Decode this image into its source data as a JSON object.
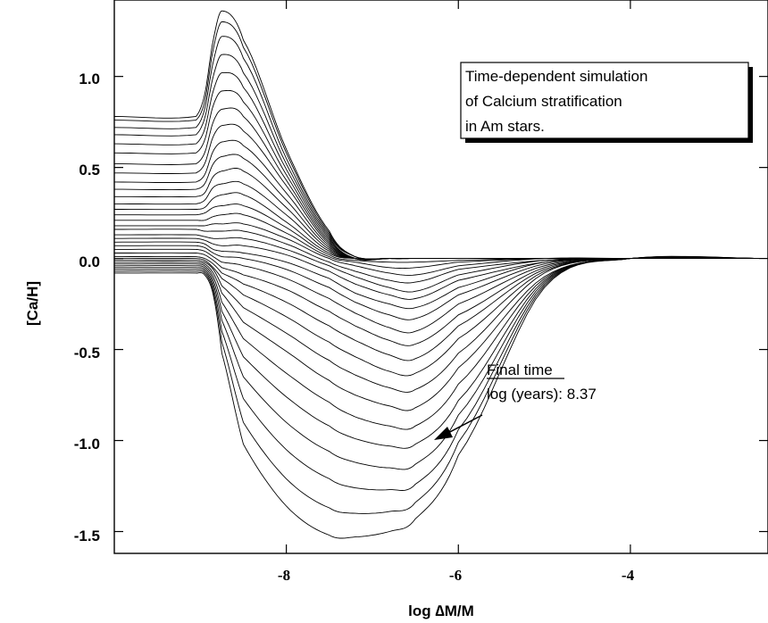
{
  "chart_data": {
    "type": "line",
    "title": "",
    "xlabel": "log ∆M/M",
    "ylabel": "[Ca/H]",
    "xlim": [
      -10.0,
      -2.4
    ],
    "ylim": [
      -1.62,
      1.42
    ],
    "x_ticks": [
      -8,
      -6,
      -4
    ],
    "x_tick_labels": [
      "-8",
      "-6",
      "-4"
    ],
    "y_ticks": [
      1.0,
      0.5,
      0.0,
      -0.5,
      -1.0,
      -1.5
    ],
    "y_tick_labels": [
      "1.0",
      "0.5",
      "0.0",
      "-0.5",
      "-1.0",
      "-1.5"
    ],
    "grid": false,
    "legend": "none",
    "annotation_box": {
      "lines": [
        "Time-dependent simulation",
        "of Calcium stratification",
        "in Am stars."
      ]
    },
    "final_annotation": {
      "heading": "Final time",
      "text": "log (years):  8.37",
      "arrow_target": {
        "x": -6.15,
        "y": -0.97
      }
    },
    "series_description": "Family of stratification profiles at successive times",
    "series": [
      {
        "x": [
          -10.0,
          -9.05,
          -8.95,
          -8.85,
          -8.75,
          -8.5,
          -8.0,
          -7.5,
          -7.2,
          -6.8,
          -6.5,
          -6.0,
          -5.0,
          -4.0,
          -2.4
        ],
        "y": [
          0.78,
          0.78,
          0.9,
          1.2,
          1.36,
          1.2,
          0.6,
          0.15,
          0.01,
          0.0,
          0.0,
          0.0,
          0.0,
          0.0,
          0.0
        ]
      },
      {
        "x": [
          -10.0,
          -9.05,
          -8.95,
          -8.85,
          -8.75,
          -8.5,
          -8.0,
          -7.5,
          -7.2,
          -6.8,
          -6.5,
          -6.0,
          -5.0,
          -4.0,
          -2.4
        ],
        "y": [
          0.76,
          0.76,
          0.86,
          1.15,
          1.3,
          1.16,
          0.58,
          0.14,
          0.01,
          0.0,
          0.0,
          0.0,
          0.0,
          0.0,
          0.0
        ]
      },
      {
        "x": [
          -10.0,
          -9.05,
          -8.95,
          -8.85,
          -8.75,
          -8.5,
          -8.0,
          -7.5,
          -7.2,
          -6.8,
          -6.5,
          -6.0,
          -5.0,
          -4.0,
          -2.4
        ],
        "y": [
          0.72,
          0.72,
          0.82,
          1.08,
          1.22,
          1.1,
          0.55,
          0.13,
          0.01,
          0.0,
          0.0,
          0.0,
          0.0,
          0.0,
          0.0
        ]
      },
      {
        "x": [
          -10.0,
          -9.05,
          -8.95,
          -8.85,
          -8.75,
          -8.5,
          -8.0,
          -7.5,
          -7.2,
          -6.8,
          -6.5,
          -6.0,
          -5.0,
          -4.0,
          -2.4
        ],
        "y": [
          0.68,
          0.68,
          0.77,
          1.0,
          1.12,
          1.02,
          0.52,
          0.12,
          0.0,
          0.0,
          0.0,
          0.0,
          0.0,
          0.0,
          0.0
        ]
      },
      {
        "x": [
          -10.0,
          -9.05,
          -8.95,
          -8.85,
          -8.75,
          -8.5,
          -8.0,
          -7.5,
          -7.2,
          -6.8,
          -6.5,
          -6.0,
          -5.0,
          -4.0,
          -2.4
        ],
        "y": [
          0.63,
          0.63,
          0.71,
          0.92,
          1.02,
          0.94,
          0.49,
          0.11,
          0.0,
          0.0,
          0.0,
          0.0,
          0.0,
          0.0,
          0.0
        ]
      },
      {
        "x": [
          -10.0,
          -9.05,
          -8.95,
          -8.85,
          -8.75,
          -8.5,
          -8.0,
          -7.5,
          -7.2,
          -6.8,
          -6.5,
          -6.0,
          -5.0,
          -4.0,
          -2.4
        ],
        "y": [
          0.58,
          0.58,
          0.65,
          0.84,
          0.92,
          0.86,
          0.46,
          0.1,
          0.0,
          0.0,
          0.0,
          0.0,
          0.0,
          0.0,
          0.0
        ]
      },
      {
        "x": [
          -10.0,
          -9.05,
          -8.95,
          -8.85,
          -8.75,
          -8.5,
          -8.0,
          -7.5,
          -7.2,
          -6.8,
          -6.5,
          -6.0,
          -5.0,
          -4.0,
          -2.4
        ],
        "y": [
          0.52,
          0.52,
          0.58,
          0.75,
          0.82,
          0.78,
          0.43,
          0.09,
          0.0,
          0.0,
          0.0,
          0.0,
          0.0,
          0.0,
          0.0
        ]
      },
      {
        "x": [
          -10.0,
          -9.05,
          -8.95,
          -8.85,
          -8.75,
          -8.5,
          -8.0,
          -7.5,
          -7.2,
          -6.8,
          -6.5,
          -6.0,
          -5.0,
          -4.0,
          -2.4
        ],
        "y": [
          0.47,
          0.47,
          0.52,
          0.67,
          0.73,
          0.7,
          0.4,
          0.08,
          0.0,
          0.0,
          0.0,
          0.0,
          0.0,
          0.0,
          0.0
        ]
      },
      {
        "x": [
          -10.0,
          -9.05,
          -8.95,
          -8.85,
          -8.75,
          -8.5,
          -8.0,
          -7.5,
          -7.2,
          -6.8,
          -6.5,
          -6.0,
          -5.0,
          -4.0,
          -2.4
        ],
        "y": [
          0.42,
          0.42,
          0.46,
          0.59,
          0.64,
          0.62,
          0.36,
          0.07,
          0.0,
          0.0,
          0.0,
          0.0,
          0.0,
          0.0,
          0.0
        ]
      },
      {
        "x": [
          -10.0,
          -9.05,
          -8.95,
          -8.85,
          -8.75,
          -8.5,
          -8.0,
          -7.5,
          -7.2,
          -6.8,
          -6.5,
          -6.0,
          -5.0,
          -4.0,
          -2.4
        ],
        "y": [
          0.38,
          0.38,
          0.41,
          0.52,
          0.56,
          0.55,
          0.32,
          0.06,
          0.0,
          0.0,
          0.0,
          0.0,
          0.0,
          0.0,
          0.0
        ]
      },
      {
        "x": [
          -10.0,
          -9.05,
          -8.95,
          -8.85,
          -8.75,
          -8.5,
          -8.0,
          -7.5,
          -7.2,
          -6.8,
          -6.5,
          -6.0,
          -5.0,
          -4.0,
          -2.4
        ],
        "y": [
          0.34,
          0.34,
          0.36,
          0.45,
          0.48,
          0.48,
          0.28,
          0.05,
          0.0,
          0.0,
          0.0,
          0.0,
          0.0,
          0.0,
          0.0
        ]
      },
      {
        "x": [
          -10.0,
          -9.05,
          -8.95,
          -8.85,
          -8.75,
          -8.5,
          -8.0,
          -7.5,
          -7.2,
          -6.8,
          -6.5,
          -6.0,
          -5.0,
          -4.0,
          -2.4
        ],
        "y": [
          0.3,
          0.3,
          0.32,
          0.39,
          0.41,
          0.41,
          0.24,
          0.04,
          0.0,
          0.0,
          0.0,
          0.0,
          0.0,
          0.0,
          0.0
        ]
      },
      {
        "x": [
          -10.0,
          -9.05,
          -8.95,
          -8.85,
          -8.75,
          -8.5,
          -8.0,
          -7.5,
          -7.2,
          -6.8,
          -6.5,
          -6.0,
          -5.0,
          -4.0,
          -2.4
        ],
        "y": [
          0.27,
          0.27,
          0.28,
          0.33,
          0.35,
          0.35,
          0.2,
          0.03,
          0.0,
          0.0,
          0.0,
          0.0,
          0.0,
          0.0,
          0.0
        ]
      },
      {
        "x": [
          -10.0,
          -9.05,
          -8.95,
          -8.85,
          -8.75,
          -8.5,
          -8.0,
          -7.5,
          -7.2,
          -6.8,
          -6.5,
          -6.0,
          -5.0,
          -4.0,
          -2.4
        ],
        "y": [
          0.24,
          0.24,
          0.25,
          0.28,
          0.29,
          0.29,
          0.17,
          0.02,
          -0.01,
          -0.02,
          -0.02,
          -0.01,
          0.0,
          0.0,
          0.0
        ]
      },
      {
        "x": [
          -10.0,
          -9.05,
          -8.95,
          -8.85,
          -8.75,
          -8.5,
          -8.0,
          -7.5,
          -7.2,
          -6.8,
          -6.5,
          -6.0,
          -5.0,
          -4.0,
          -2.4
        ],
        "y": [
          0.21,
          0.21,
          0.21,
          0.23,
          0.24,
          0.24,
          0.14,
          0.01,
          -0.02,
          -0.05,
          -0.05,
          -0.02,
          0.0,
          0.0,
          0.0
        ]
      },
      {
        "x": [
          -10.0,
          -9.05,
          -8.95,
          -8.85,
          -8.75,
          -8.5,
          -8.0,
          -7.5,
          -7.2,
          -6.8,
          -6.5,
          -6.0,
          -5.0,
          -4.0,
          -2.4
        ],
        "y": [
          0.18,
          0.18,
          0.18,
          0.19,
          0.19,
          0.19,
          0.11,
          0.0,
          -0.04,
          -0.08,
          -0.09,
          -0.04,
          0.0,
          0.0,
          0.0
        ]
      },
      {
        "x": [
          -10.0,
          -9.05,
          -8.95,
          -8.85,
          -8.75,
          -8.5,
          -8.0,
          -7.5,
          -7.2,
          -6.8,
          -6.5,
          -6.0,
          -5.0,
          -4.0,
          -2.4
        ],
        "y": [
          0.16,
          0.16,
          0.15,
          0.15,
          0.15,
          0.15,
          0.08,
          -0.02,
          -0.07,
          -0.12,
          -0.13,
          -0.06,
          -0.01,
          0.0,
          0.0
        ]
      },
      {
        "x": [
          -10.0,
          -9.05,
          -8.95,
          -8.85,
          -8.75,
          -8.5,
          -8.0,
          -7.5,
          -7.2,
          -6.8,
          -6.5,
          -6.0,
          -5.0,
          -4.0,
          -2.4
        ],
        "y": [
          0.13,
          0.13,
          0.12,
          0.11,
          0.11,
          0.11,
          0.05,
          -0.04,
          -0.1,
          -0.16,
          -0.18,
          -0.09,
          -0.01,
          0.0,
          0.0
        ]
      },
      {
        "x": [
          -10.0,
          -9.05,
          -8.95,
          -8.85,
          -8.75,
          -8.5,
          -8.0,
          -7.5,
          -7.2,
          -6.8,
          -6.5,
          -6.0,
          -5.0,
          -4.0,
          -2.4
        ],
        "y": [
          0.11,
          0.11,
          0.1,
          0.08,
          0.07,
          0.07,
          0.02,
          -0.07,
          -0.14,
          -0.2,
          -0.22,
          -0.12,
          -0.02,
          0.0,
          0.0
        ]
      },
      {
        "x": [
          -10.0,
          -9.05,
          -8.95,
          -8.85,
          -8.75,
          -8.5,
          -8.0,
          -7.5,
          -7.2,
          -6.8,
          -6.5,
          -6.0,
          -5.0,
          -4.0,
          -2.4
        ],
        "y": [
          0.09,
          0.09,
          0.08,
          0.05,
          0.04,
          0.03,
          -0.02,
          -0.11,
          -0.19,
          -0.25,
          -0.27,
          -0.16,
          -0.02,
          0.0,
          0.0
        ]
      },
      {
        "x": [
          -10.0,
          -9.05,
          -8.95,
          -8.85,
          -8.75,
          -8.5,
          -8.0,
          -7.5,
          -7.2,
          -6.8,
          -6.5,
          -6.0,
          -5.0,
          -4.0,
          -2.4
        ],
        "y": [
          0.07,
          0.07,
          0.06,
          0.03,
          0.01,
          0.0,
          -0.06,
          -0.16,
          -0.24,
          -0.31,
          -0.33,
          -0.2,
          -0.03,
          0.0,
          0.0
        ]
      },
      {
        "x": [
          -10.0,
          -9.05,
          -8.95,
          -8.85,
          -8.75,
          -8.5,
          -8.0,
          -7.5,
          -7.2,
          -6.8,
          -6.5,
          -6.0,
          -5.0,
          -4.0,
          -2.4
        ],
        "y": [
          0.05,
          0.05,
          0.04,
          0.01,
          -0.02,
          -0.04,
          -0.11,
          -0.22,
          -0.3,
          -0.38,
          -0.4,
          -0.25,
          -0.04,
          0.0,
          0.0
        ]
      },
      {
        "x": [
          -10.0,
          -9.05,
          -8.95,
          -8.85,
          -8.75,
          -8.5,
          -8.0,
          -7.5,
          -7.2,
          -6.8,
          -6.5,
          -6.0,
          -5.0,
          -4.0,
          -2.4
        ],
        "y": [
          0.03,
          0.03,
          0.02,
          -0.01,
          -0.05,
          -0.09,
          -0.17,
          -0.29,
          -0.37,
          -0.45,
          -0.47,
          -0.31,
          -0.05,
          0.0,
          0.0
        ]
      },
      {
        "x": [
          -10.0,
          -9.05,
          -8.95,
          -8.85,
          -8.75,
          -8.5,
          -8.0,
          -7.5,
          -7.2,
          -6.8,
          -6.5,
          -6.0,
          -5.0,
          -4.0,
          -2.4
        ],
        "y": [
          0.01,
          0.01,
          0.0,
          -0.03,
          -0.08,
          -0.14,
          -0.24,
          -0.37,
          -0.45,
          -0.53,
          -0.55,
          -0.37,
          -0.06,
          0.0,
          0.0
        ]
      },
      {
        "x": [
          -10.0,
          -9.05,
          -8.95,
          -8.85,
          -8.75,
          -8.5,
          -8.0,
          -7.5,
          -7.2,
          -6.8,
          -6.5,
          -6.0,
          -5.0,
          -4.0,
          -2.4
        ],
        "y": [
          0.0,
          0.0,
          -0.01,
          -0.05,
          -0.11,
          -0.2,
          -0.32,
          -0.46,
          -0.54,
          -0.62,
          -0.63,
          -0.44,
          -0.07,
          0.0,
          0.0
        ]
      },
      {
        "x": [
          -10.0,
          -9.05,
          -8.95,
          -8.85,
          -8.75,
          -8.5,
          -8.0,
          -7.5,
          -7.2,
          -6.8,
          -6.5,
          -6.0,
          -5.0,
          -4.0,
          -2.4
        ],
        "y": [
          -0.01,
          -0.01,
          -0.02,
          -0.06,
          -0.15,
          -0.27,
          -0.41,
          -0.56,
          -0.64,
          -0.71,
          -0.72,
          -0.52,
          -0.08,
          0.0,
          0.0
        ]
      },
      {
        "x": [
          -10.0,
          -9.05,
          -8.95,
          -8.85,
          -8.75,
          -8.5,
          -8.0,
          -7.5,
          -7.2,
          -6.8,
          -6.5,
          -6.0,
          -5.0,
          -4.0,
          -2.4
        ],
        "y": [
          -0.02,
          -0.02,
          -0.03,
          -0.08,
          -0.19,
          -0.35,
          -0.51,
          -0.67,
          -0.75,
          -0.81,
          -0.82,
          -0.6,
          -0.1,
          0.0,
          0.0
        ]
      },
      {
        "x": [
          -10.0,
          -9.05,
          -8.95,
          -8.85,
          -8.75,
          -8.5,
          -8.0,
          -7.5,
          -7.2,
          -6.8,
          -6.5,
          -6.0,
          -5.0,
          -4.0,
          -2.4
        ],
        "y": [
          -0.03,
          -0.03,
          -0.04,
          -0.1,
          -0.24,
          -0.44,
          -0.63,
          -0.79,
          -0.87,
          -0.92,
          -0.92,
          -0.69,
          -0.11,
          0.0,
          0.0
        ]
      },
      {
        "x": [
          -10.0,
          -9.05,
          -8.95,
          -8.85,
          -8.75,
          -8.5,
          -8.0,
          -7.5,
          -7.2,
          -6.8,
          -6.5,
          -6.0,
          -5.0,
          -4.0,
          -2.4
        ],
        "y": [
          -0.04,
          -0.04,
          -0.05,
          -0.12,
          -0.29,
          -0.54,
          -0.76,
          -0.92,
          -0.99,
          -1.03,
          -1.02,
          -0.78,
          -0.12,
          0.0,
          0.0
        ]
      },
      {
        "x": [
          -10.0,
          -9.05,
          -8.95,
          -8.85,
          -8.75,
          -8.5,
          -8.0,
          -7.5,
          -7.2,
          -6.8,
          -6.5,
          -6.0,
          -5.0,
          -4.0,
          -2.4
        ],
        "y": [
          -0.05,
          -0.05,
          -0.06,
          -0.14,
          -0.34,
          -0.65,
          -0.9,
          -1.06,
          -1.12,
          -1.15,
          -1.13,
          -0.86,
          -0.13,
          0.0,
          0.0
        ]
      },
      {
        "x": [
          -10.0,
          -9.05,
          -8.95,
          -8.85,
          -8.75,
          -8.5,
          -8.0,
          -7.5,
          -7.2,
          -6.8,
          -6.5,
          -6.0,
          -5.0,
          -4.0,
          -2.4
        ],
        "y": [
          -0.06,
          -0.06,
          -0.07,
          -0.16,
          -0.4,
          -0.77,
          -1.05,
          -1.21,
          -1.26,
          -1.27,
          -1.24,
          -0.94,
          -0.14,
          0.0,
          0.0
        ]
      },
      {
        "x": [
          -10.0,
          -9.05,
          -8.95,
          -8.85,
          -8.75,
          -8.5,
          -8.0,
          -7.5,
          -7.2,
          -6.8,
          -6.5,
          -6.0,
          -5.0,
          -4.0,
          -2.4
        ],
        "y": [
          -0.07,
          -0.07,
          -0.08,
          -0.18,
          -0.46,
          -0.9,
          -1.21,
          -1.37,
          -1.4,
          -1.39,
          -1.34,
          -1.01,
          -0.15,
          0.0,
          0.0
        ]
      },
      {
        "x": [
          -10.0,
          -9.05,
          -8.95,
          -8.85,
          -8.75,
          -8.5,
          -8.0,
          -7.5,
          -7.2,
          -6.8,
          -6.5,
          -6.0,
          -5.0,
          -4.0,
          -2.4
        ],
        "y": [
          -0.08,
          -0.08,
          -0.09,
          -0.2,
          -0.52,
          -1.02,
          -1.36,
          -1.52,
          -1.53,
          -1.5,
          -1.43,
          -1.08,
          -0.16,
          0.0,
          0.0
        ]
      }
    ]
  }
}
